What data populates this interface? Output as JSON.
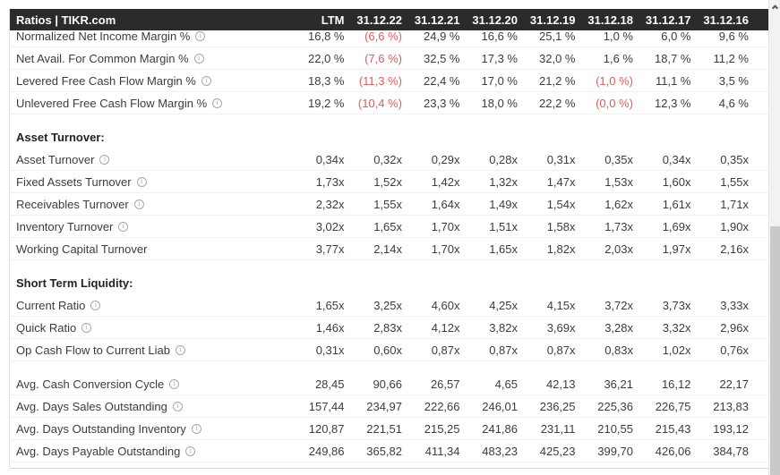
{
  "header": {
    "title": "Ratios | TIKR.com",
    "columns": [
      "LTM",
      "31.12.22",
      "31.12.21",
      "31.12.20",
      "31.12.19",
      "31.12.18",
      "31.12.17",
      "31.12.16"
    ]
  },
  "sections": [
    {
      "heading": null,
      "rows": [
        {
          "label": "Normalized Net Income Margin %",
          "info": true,
          "values": [
            "16,8 %",
            "(6,6 %)",
            "24,9 %",
            "16,6 %",
            "25,1 %",
            "1,0 %",
            "6,0 %",
            "9,6 %"
          ]
        },
        {
          "label": "Net Avail. For Common Margin %",
          "info": true,
          "values": [
            "22,0 %",
            "(7,6 %)",
            "32,5 %",
            "17,3 %",
            "32,0 %",
            "1,6 %",
            "18,7 %",
            "11,2 %"
          ]
        },
        {
          "label": "Levered Free Cash Flow Margin %",
          "info": true,
          "values": [
            "18,3 %",
            "(11,3 %)",
            "22,4 %",
            "17,0 %",
            "21,2 %",
            "(1,0 %)",
            "11,1 %",
            "3,5 %"
          ]
        },
        {
          "label": "Unlevered Free Cash Flow Margin %",
          "info": true,
          "values": [
            "19,2 %",
            "(10,4 %)",
            "23,3 %",
            "18,0 %",
            "22,2 %",
            "(0,0 %)",
            "12,3 %",
            "4,6 %"
          ]
        }
      ]
    },
    {
      "heading": "Asset Turnover:",
      "rows": [
        {
          "label": "Asset Turnover",
          "info": true,
          "values": [
            "0,34x",
            "0,32x",
            "0,29x",
            "0,28x",
            "0,31x",
            "0,35x",
            "0,34x",
            "0,35x"
          ]
        },
        {
          "label": "Fixed Assets Turnover",
          "info": true,
          "values": [
            "1,73x",
            "1,52x",
            "1,42x",
            "1,32x",
            "1,47x",
            "1,53x",
            "1,60x",
            "1,55x"
          ]
        },
        {
          "label": "Receivables Turnover",
          "info": true,
          "values": [
            "2,32x",
            "1,55x",
            "1,64x",
            "1,49x",
            "1,54x",
            "1,62x",
            "1,61x",
            "1,71x"
          ]
        },
        {
          "label": "Inventory Turnover",
          "info": true,
          "values": [
            "3,02x",
            "1,65x",
            "1,70x",
            "1,51x",
            "1,58x",
            "1,73x",
            "1,69x",
            "1,90x"
          ]
        },
        {
          "label": "Working Capital Turnover",
          "info": false,
          "values": [
            "3,77x",
            "2,14x",
            "1,70x",
            "1,65x",
            "1,82x",
            "2,03x",
            "1,97x",
            "2,16x"
          ]
        }
      ]
    },
    {
      "heading": "Short Term Liquidity:",
      "rows": [
        {
          "label": "Current Ratio",
          "info": true,
          "values": [
            "1,65x",
            "3,25x",
            "4,60x",
            "4,25x",
            "4,15x",
            "3,72x",
            "3,73x",
            "3,33x"
          ]
        },
        {
          "label": "Quick Ratio",
          "info": true,
          "values": [
            "1,46x",
            "2,83x",
            "4,12x",
            "3,82x",
            "3,69x",
            "3,28x",
            "3,32x",
            "2,96x"
          ]
        },
        {
          "label": "Op Cash Flow to Current Liab",
          "info": true,
          "values": [
            "0,31x",
            "0,60x",
            "0,87x",
            "0,87x",
            "0,87x",
            "0,83x",
            "1,02x",
            "0,76x"
          ]
        }
      ]
    },
    {
      "heading": null,
      "rows": [
        {
          "label": "Avg. Cash Conversion Cycle",
          "info": true,
          "values": [
            "28,45",
            "90,66",
            "26,57",
            "4,65",
            "42,13",
            "36,21",
            "16,12",
            "22,17"
          ]
        },
        {
          "label": "Avg. Days Sales Outstanding",
          "info": true,
          "values": [
            "157,44",
            "234,97",
            "222,66",
            "246,01",
            "236,25",
            "225,36",
            "226,75",
            "213,83"
          ]
        },
        {
          "label": "Avg. Days Outstanding Inventory",
          "info": true,
          "values": [
            "120,87",
            "221,51",
            "215,25",
            "241,86",
            "231,11",
            "210,55",
            "215,43",
            "193,12"
          ]
        },
        {
          "label": "Avg. Days Payable Outstanding",
          "info": true,
          "values": [
            "249,86",
            "365,82",
            "411,34",
            "483,23",
            "425,23",
            "399,70",
            "426,06",
            "384,78"
          ]
        }
      ]
    }
  ],
  "icons": {
    "info": "i",
    "scrollbar_up": "chevron-up"
  },
  "colors": {
    "header-bg": "#2b2b2b",
    "header-text": "#ffffff",
    "text": "#3c3c3c",
    "negative": "#e05b5b",
    "row-border": "#f1f1f1",
    "sb-track": "#f2f2f2",
    "sb-thumb": "#c9c9c9"
  }
}
